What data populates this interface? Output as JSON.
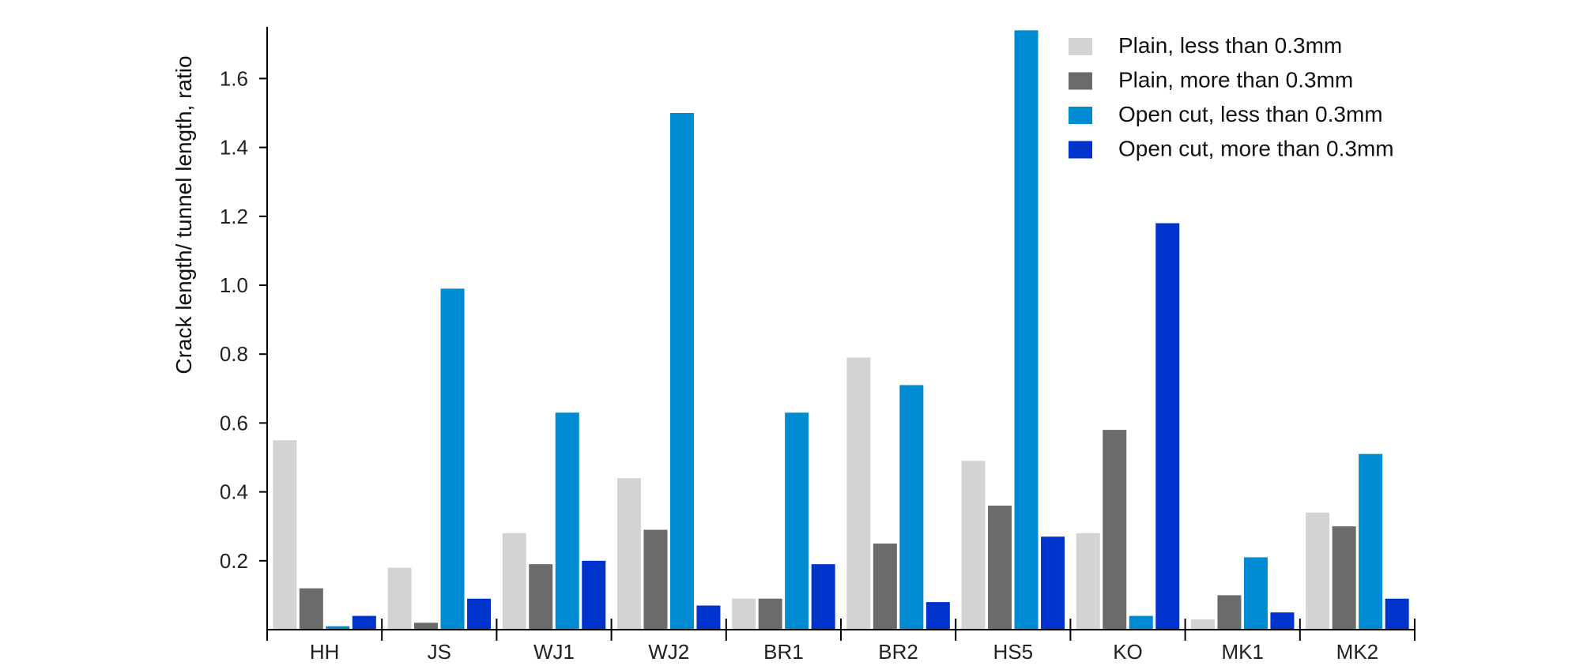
{
  "chart_data": {
    "type": "bar",
    "title": "",
    "xlabel": "",
    "ylabel": "Crack length/ tunnel length, ratio",
    "ylim": [
      0,
      1.75
    ],
    "yticks": [
      0.2,
      0.4,
      0.6,
      0.8,
      1.0,
      1.2,
      1.4,
      1.6
    ],
    "ytick_labels": [
      "0.2",
      "0.4",
      "0.6",
      "0.8",
      "1.0",
      "1.2",
      "1.4",
      "1.6"
    ],
    "grid": false,
    "legend_position": "top-right",
    "categories": [
      "HH",
      "JS",
      "WJ1",
      "WJ2",
      "BR1",
      "BR2",
      "HS5",
      "KO",
      "MK1",
      "MK2"
    ],
    "series": [
      {
        "name": "Plain, less than 0.3mm",
        "color": "#d3d3d3",
        "values": [
          0.55,
          0.18,
          0.28,
          0.44,
          0.09,
          0.79,
          0.49,
          0.28,
          0.03,
          0.34
        ]
      },
      {
        "name": "Plain, more than 0.3mm",
        "color": "#6b6b6b",
        "values": [
          0.12,
          0.02,
          0.19,
          0.29,
          0.09,
          0.25,
          0.36,
          0.58,
          0.1,
          0.3
        ]
      },
      {
        "name": "Open cut, less than 0.3mm",
        "color": "#008ad2",
        "values": [
          0.01,
          0.99,
          0.63,
          1.5,
          0.63,
          0.71,
          1.74,
          0.04,
          0.21,
          0.51
        ]
      },
      {
        "name": "Open cut, more than 0.3mm",
        "color": "#0033cc",
        "values": [
          0.04,
          0.09,
          0.2,
          0.07,
          0.19,
          0.08,
          0.27,
          1.18,
          0.05,
          0.09
        ]
      }
    ]
  }
}
